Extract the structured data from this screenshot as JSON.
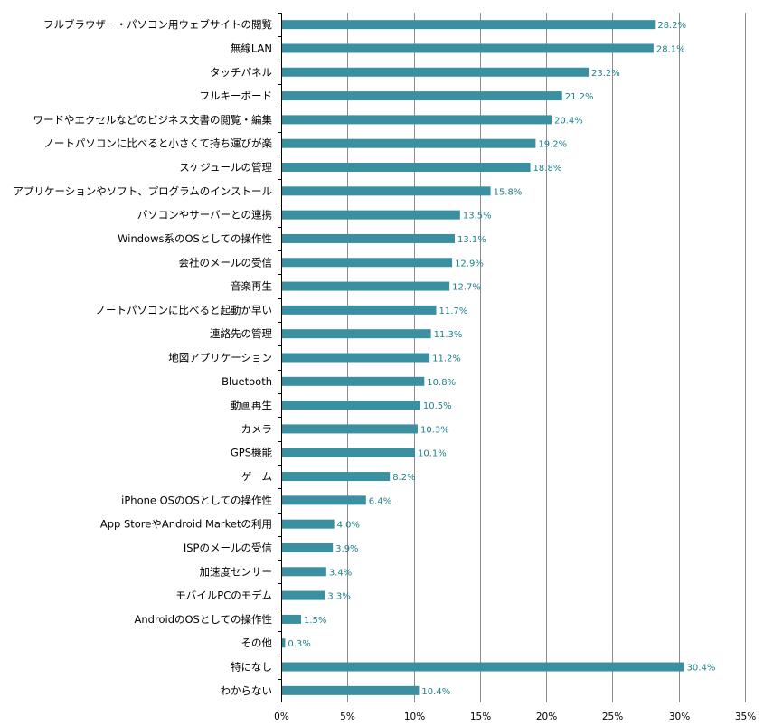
{
  "chart_data": {
    "type": "bar",
    "orientation": "horizontal",
    "categories": [
      "フルブラウザー・パソコン用ウェブサイトの閲覧",
      "無線LAN",
      "タッチパネル",
      "フルキーボード",
      "ワードやエクセルなどのビジネス文書の閲覧・編集",
      "ノートパソコンに比べると小さくて持ち運びが楽",
      "スケジュールの管理",
      "アプリケーションやソフト、プログラムのインストール",
      "パソコンやサーバーとの連携",
      "Windows系のOSとしての操作性",
      "会社のメールの受信",
      "音楽再生",
      "ノートパソコンに比べると起動が早い",
      "連絡先の管理",
      "地図アプリケーション",
      "Bluetooth",
      "動画再生",
      "カメラ",
      "GPS機能",
      "ゲーム",
      "iPhone OSのOSとしての操作性",
      "App StoreやAndroid Marketの利用",
      "ISPのメールの受信",
      "加速度センサー",
      "モバイルPCのモデム",
      "AndroidのOSとしての操作性",
      "その他",
      "特になし",
      "わからない"
    ],
    "values": [
      28.2,
      28.1,
      23.2,
      21.2,
      20.4,
      19.2,
      18.8,
      15.8,
      13.5,
      13.1,
      12.9,
      12.7,
      11.7,
      11.3,
      11.2,
      10.8,
      10.5,
      10.3,
      10.1,
      8.2,
      6.4,
      4.0,
      3.9,
      3.4,
      3.3,
      1.5,
      0.3,
      30.4,
      10.4
    ],
    "value_labels": [
      "28.2%",
      "28.1%",
      "23.2%",
      "21.2%",
      "20.4%",
      "19.2%",
      "18.8%",
      "15.8%",
      "13.5%",
      "13.1%",
      "12.9%",
      "12.7%",
      "11.7%",
      "11.3%",
      "11.2%",
      "10.8%",
      "10.5%",
      "10.3%",
      "10.1%",
      "8.2%",
      "6.4%",
      "4.0%",
      "3.9%",
      "3.4%",
      "3.3%",
      "1.5%",
      "0.3%",
      "30.4%",
      "10.4%"
    ],
    "x_ticks": [
      0,
      5,
      10,
      15,
      20,
      25,
      30,
      35
    ],
    "x_tick_labels": [
      "0%",
      "5%",
      "10%",
      "15%",
      "20%",
      "25%",
      "30%",
      "35%"
    ],
    "xlim": [
      0,
      35
    ],
    "grid": true,
    "legend": "none",
    "title": "",
    "xlabel": "",
    "ylabel": "",
    "colors": {
      "bar": "#3a8fa0",
      "value_label": "#1f7f8c",
      "grid": "#8c8c8c"
    }
  }
}
